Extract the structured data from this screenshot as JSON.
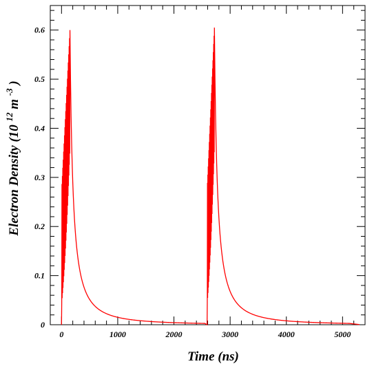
{
  "chart_data": {
    "type": "line",
    "title": "",
    "xlabel": "Time (ns)",
    "ylabel_parts": {
      "main": "Electron Density (10",
      "exp1": "12",
      "unit": " m",
      "exp2": "-3",
      "close": ")"
    },
    "xlim": [
      -200,
      5400
    ],
    "ylim": [
      0,
      0.65
    ],
    "x_ticks": [
      0,
      1000,
      2000,
      3000,
      4000,
      5000
    ],
    "x_tick_labels": [
      "0",
      "1000",
      "2000",
      "3000",
      "4000",
      "5000"
    ],
    "y_ticks": [
      0,
      0.1,
      0.2,
      0.3,
      0.4,
      0.5,
      0.6
    ],
    "y_tick_labels": [
      "0",
      "0.1",
      "0.2",
      "0.3",
      "0.4",
      "0.5",
      "0.6"
    ],
    "grid": false,
    "series": [
      {
        "color": "#ff0000",
        "pulses": [
          {
            "start": 0,
            "peak_time": 150,
            "peak": 0.6
          },
          {
            "start": 2590,
            "peak_time": 2720,
            "peak": 0.605
          }
        ],
        "x": [
          0,
          5,
          10,
          18,
          25,
          32,
          40,
          48,
          55,
          62,
          70,
          78,
          85,
          92,
          100,
          108,
          115,
          122,
          130,
          140,
          150,
          170,
          200,
          250,
          300,
          400,
          500,
          700,
          1000,
          1300,
          1600,
          2000,
          2400,
          2585,
          2590,
          2595,
          2600,
          2608,
          2615,
          2622,
          2630,
          2638,
          2645,
          2652,
          2660,
          2668,
          2675,
          2682,
          2690,
          2700,
          2710,
          2720,
          2740,
          2770,
          2820,
          2870,
          2970,
          3070,
          3270,
          3570,
          3870,
          4170,
          4600,
          5000,
          5300
        ],
        "y": [
          0.0,
          0.06,
          0.3,
          0.1,
          0.36,
          0.15,
          0.4,
          0.2,
          0.45,
          0.24,
          0.5,
          0.26,
          0.54,
          0.28,
          0.56,
          0.3,
          0.58,
          0.35,
          0.59,
          0.5,
          0.6,
          0.38,
          0.28,
          0.16,
          0.1,
          0.05,
          0.03,
          0.015,
          0.007,
          0.004,
          0.002,
          0.001,
          0.0005,
          0.0,
          0.0,
          0.07,
          0.31,
          0.1,
          0.37,
          0.15,
          0.41,
          0.2,
          0.46,
          0.24,
          0.51,
          0.27,
          0.55,
          0.29,
          0.57,
          0.31,
          0.59,
          0.605,
          0.4,
          0.29,
          0.17,
          0.1,
          0.05,
          0.03,
          0.015,
          0.007,
          0.004,
          0.002,
          0.001,
          0.0005,
          0.0003
        ]
      }
    ]
  }
}
